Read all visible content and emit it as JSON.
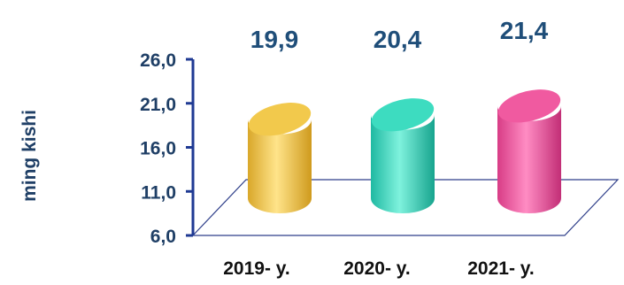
{
  "chart_data": {
    "type": "bar",
    "categories": [
      "2019- y.",
      "2020- y.",
      "2021- y."
    ],
    "values": [
      19.9,
      20.4,
      21.4
    ],
    "value_labels": [
      "19,9",
      "20,4",
      "21,4"
    ],
    "ylabel": "ming kishi",
    "ylim": [
      6.0,
      26.0
    ],
    "yticks": [
      "6,0",
      "11,0",
      "16,0",
      "21,0",
      "26,0"
    ],
    "legend": "none",
    "grid": false,
    "colors": {
      "bars": [
        "#f2c94c",
        "#3ddcc0",
        "#f05aa0"
      ],
      "value_labels": "#1f4e79",
      "axis_text": "#1f3f66",
      "axis_lines": "#1f3a93"
    }
  }
}
